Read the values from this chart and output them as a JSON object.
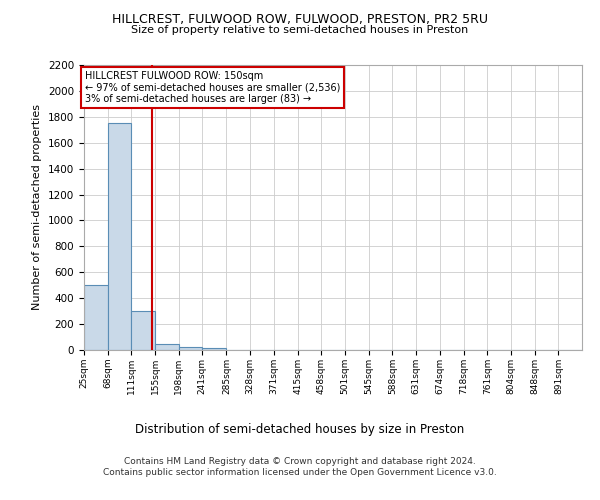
{
  "title1": "HILLCREST, FULWOOD ROW, FULWOOD, PRESTON, PR2 5RU",
  "title2": "Size of property relative to semi-detached houses in Preston",
  "xlabel": "Distribution of semi-detached houses by size in Preston",
  "ylabel": "Number of semi-detached properties",
  "footer": "Contains HM Land Registry data © Crown copyright and database right 2024.\nContains public sector information licensed under the Open Government Licence v3.0.",
  "annotation_title": "HILLCREST FULWOOD ROW: 150sqm",
  "annotation_line1": "← 97% of semi-detached houses are smaller (2,536)",
  "annotation_line2": "3% of semi-detached houses are larger (83) →",
  "property_size": 150,
  "categories": [
    "25sqm",
    "68sqm",
    "111sqm",
    "155sqm",
    "198sqm",
    "241sqm",
    "285sqm",
    "328sqm",
    "371sqm",
    "415sqm",
    "458sqm",
    "501sqm",
    "545sqm",
    "588sqm",
    "631sqm",
    "674sqm",
    "718sqm",
    "761sqm",
    "804sqm",
    "848sqm",
    "891sqm"
  ],
  "bin_edges": [
    25,
    68,
    111,
    155,
    198,
    241,
    285,
    328,
    371,
    415,
    458,
    501,
    545,
    588,
    631,
    674,
    718,
    761,
    804,
    848,
    891,
    934
  ],
  "values": [
    500,
    1750,
    300,
    50,
    25,
    15,
    0,
    0,
    0,
    0,
    0,
    0,
    0,
    0,
    0,
    0,
    0,
    0,
    0,
    0,
    0
  ],
  "bar_color": "#c9d9e8",
  "bar_edge_color": "#5a8db5",
  "red_line_color": "#cc0000",
  "annotation_box_color": "#cc0000",
  "grid_color": "#cccccc",
  "ylim": [
    0,
    2200
  ],
  "yticks": [
    0,
    200,
    400,
    600,
    800,
    1000,
    1200,
    1400,
    1600,
    1800,
    2000,
    2200
  ]
}
